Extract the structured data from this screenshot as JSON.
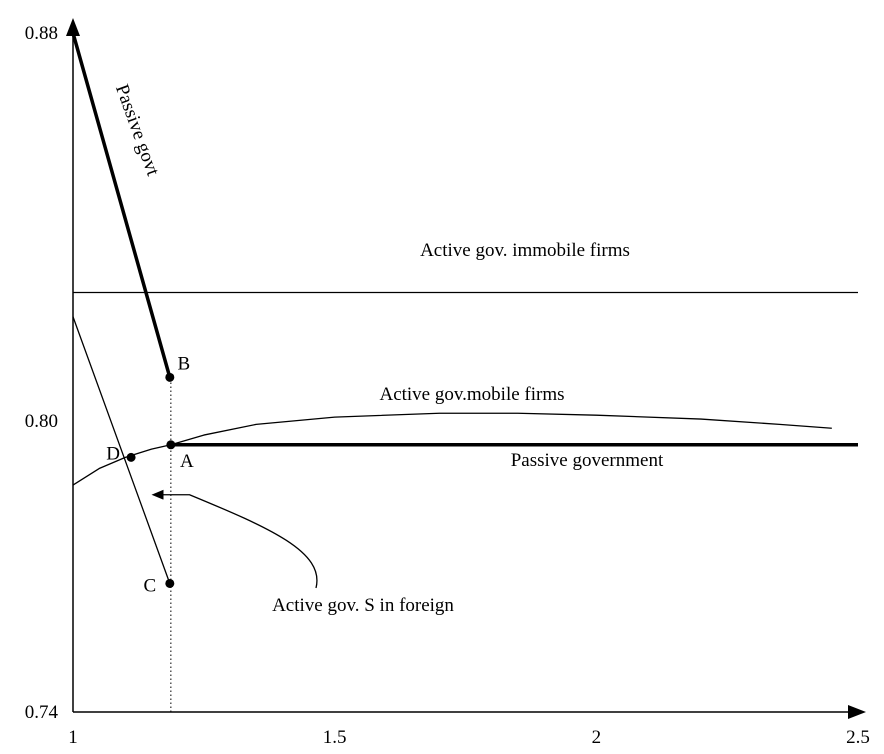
{
  "chart_data": {
    "type": "line",
    "title": "",
    "xlabel": "",
    "ylabel": "",
    "xlim": [
      1,
      2.5
    ],
    "ylim": [
      0.74,
      0.88
    ],
    "x_ticks": [
      1,
      1.5,
      2,
      2.5
    ],
    "x_tick_labels": [
      "1",
      "1.5",
      "2",
      "2.5"
    ],
    "y_ticks": [
      0.74,
      0.8,
      0.88
    ],
    "y_tick_labels": [
      "0.74",
      "0.80",
      "0.88"
    ],
    "grid": false,
    "series": [
      {
        "name": "Passive govt",
        "style": "thick",
        "points": [
          [
            1.0,
            0.88
          ],
          [
            1.185,
            0.809
          ]
        ]
      },
      {
        "name": "Active gov. immobile firms",
        "style": "thin",
        "points": [
          [
            1.0,
            0.8265
          ],
          [
            2.5,
            0.8265
          ]
        ]
      },
      {
        "name": "Active gov. S in foreign",
        "style": "thin",
        "points": [
          [
            1.0,
            0.8215
          ],
          [
            1.185,
            0.7665
          ]
        ]
      },
      {
        "name": "Active gov.mobile firms",
        "style": "thin",
        "points": [
          [
            1.0,
            0.7868
          ],
          [
            1.05,
            0.7902
          ],
          [
            1.1,
            0.7925
          ],
          [
            1.15,
            0.7942
          ],
          [
            1.187,
            0.7951
          ],
          [
            1.25,
            0.7971
          ],
          [
            1.35,
            0.7993
          ],
          [
            1.5,
            0.8008
          ],
          [
            1.7,
            0.8016
          ],
          [
            1.85,
            0.8016
          ],
          [
            2.0,
            0.8012
          ],
          [
            2.2,
            0.8004
          ],
          [
            2.35,
            0.7993
          ],
          [
            2.45,
            0.7985
          ]
        ]
      },
      {
        "name": "Passive government",
        "style": "thick",
        "points": [
          [
            1.187,
            0.7951
          ],
          [
            2.5,
            0.7951
          ]
        ]
      }
    ],
    "points": [
      {
        "label": "A",
        "x": 1.187,
        "y": 0.7951
      },
      {
        "label": "B",
        "x": 1.185,
        "y": 0.809
      },
      {
        "label": "C",
        "x": 1.185,
        "y": 0.7665
      },
      {
        "label": "D",
        "x": 1.111,
        "y": 0.7925
      }
    ],
    "annotations": [
      {
        "text": "Active gov. S in foreign",
        "type": "curved-arrow",
        "target_x": 1.15,
        "target_y": 0.7848
      }
    ],
    "reference_line": {
      "x": 1.187,
      "y_from": 0.74,
      "y_to": 0.809,
      "style": "dotted"
    }
  }
}
